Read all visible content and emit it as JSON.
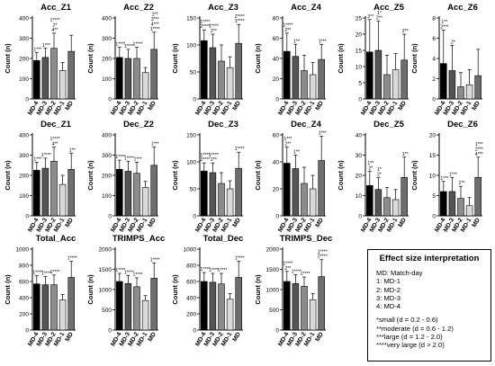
{
  "colors": {
    "MD-4": "#000000",
    "MD-3": "#555555",
    "MD-2": "#8c8c8c",
    "MD-1": "#d9d9d9",
    "MD": "#6e6e6e",
    "axis": "#000000"
  },
  "chart_data": [
    {
      "type": "bar",
      "title": "Acc_Z1",
      "ylabel": "Count (n)",
      "categories": [
        "MD-4",
        "MD-3",
        "MD-2",
        "MD-1",
        "MD"
      ],
      "values": [
        190,
        205,
        250,
        140,
        235
      ],
      "errors": [
        40,
        45,
        75,
        40,
        80
      ],
      "annotations": [
        "1***",
        "1***",
        "1****\n2*\n4**",
        "",
        ""
      ],
      "ylim": [
        0,
        400
      ],
      "yticks": [
        0,
        100,
        200,
        300,
        400
      ]
    },
    {
      "type": "bar",
      "title": "Acc_Z2",
      "ylabel": "Count (n)",
      "categories": [
        "MD-4",
        "MD-3",
        "MD-2",
        "MD-1",
        "MD"
      ],
      "values": [
        205,
        200,
        200,
        130,
        245
      ],
      "errors": [
        50,
        45,
        55,
        25,
        85
      ],
      "annotations": [
        "1****",
        "1****",
        "1****",
        "",
        "2**\n3***\n4***\n1****"
      ],
      "ylim": [
        0,
        400
      ],
      "yticks": [
        0,
        100,
        200,
        300,
        400
      ]
    },
    {
      "type": "bar",
      "title": "Acc_Z3",
      "ylabel": "Count (n)",
      "categories": [
        "MD-4",
        "MD-3",
        "MD-2",
        "MD-1",
        "MD"
      ],
      "values": [
        108,
        95,
        70,
        58,
        103
      ],
      "errors": [
        20,
        25,
        30,
        20,
        35
      ],
      "annotations": [
        "1****\n2****",
        "1****\n2**",
        "",
        "",
        "2****\n1****"
      ],
      "ylim": [
        0,
        150
      ],
      "yticks": [
        0,
        50,
        100,
        150
      ]
    },
    {
      "type": "bar",
      "title": "Acc_Z4",
      "ylabel": "Count (n)",
      "categories": [
        "MD-4",
        "MD-3",
        "MD-2",
        "MD-1",
        "MD"
      ],
      "values": [
        47,
        42,
        28,
        24,
        39
      ],
      "errors": [
        18,
        12,
        15,
        12,
        15
      ],
      "annotations": [
        "1****\n2**",
        "1**",
        "",
        "",
        "1***"
      ],
      "ylim": [
        0,
        80
      ],
      "yticks": [
        0,
        20,
        40,
        60,
        80
      ]
    },
    {
      "type": "bar",
      "title": "Acc_Z5",
      "ylabel": "Count (n)",
      "categories": [
        "MD-4",
        "MD-3",
        "MD-2",
        "MD-1",
        "MD"
      ],
      "values": [
        14.5,
        15,
        7.5,
        9,
        12
      ],
      "errors": [
        10,
        9,
        6,
        5,
        8
      ],
      "annotations": [
        "2**",
        "1*\n2**",
        "",
        "",
        "2**"
      ],
      "ylim": [
        0,
        25
      ],
      "yticks": [
        0,
        5,
        10,
        15,
        20,
        25
      ]
    },
    {
      "type": "bar",
      "title": "Acc_Z6",
      "ylabel": "Count (n)",
      "categories": [
        "MD-4",
        "MD-3",
        "MD-2",
        "MD-1",
        "MD"
      ],
      "values": [
        3.5,
        2.8,
        1.2,
        1.4,
        2.3
      ],
      "errors": [
        3.3,
        2.5,
        1.4,
        1.5,
        2.6
      ],
      "annotations": [
        "1**\n2***",
        "2*",
        "",
        "",
        ""
      ],
      "ylim": [
        0,
        8
      ],
      "yticks": [
        0,
        2,
        4,
        6,
        8
      ]
    },
    {
      "type": "bar",
      "title": "Dec_Z1",
      "ylabel": "Count (n)",
      "categories": [
        "MD-4",
        "MD-3",
        "MD-2",
        "MD-1",
        "MD"
      ],
      "values": [
        225,
        235,
        270,
        155,
        230
      ],
      "errors": [
        40,
        50,
        70,
        45,
        80
      ],
      "annotations": [
        "1***",
        "1****",
        "1****\n4**",
        "",
        "1**"
      ],
      "ylim": [
        0,
        400
      ],
      "yticks": [
        0,
        100,
        200,
        300,
        400
      ]
    },
    {
      "type": "bar",
      "title": "Dec_Z2",
      "ylabel": "Count (n)",
      "categories": [
        "MD-4",
        "MD-3",
        "MD-2",
        "MD-1",
        "MD"
      ],
      "values": [
        230,
        220,
        210,
        140,
        250
      ],
      "errors": [
        45,
        50,
        55,
        30,
        90
      ],
      "annotations": [
        "1****",
        "1****",
        "1***",
        "",
        "1***"
      ],
      "ylim": [
        0,
        400
      ],
      "yticks": [
        0,
        100,
        200,
        300,
        400
      ]
    },
    {
      "type": "bar",
      "title": "Dec_Z3",
      "ylabel": "Count (n)",
      "categories": [
        "MD-4",
        "MD-3",
        "MD-2",
        "MD-1",
        "MD"
      ],
      "values": [
        83,
        80,
        60,
        50,
        88
      ],
      "errors": [
        15,
        18,
        20,
        15,
        30
      ],
      "annotations": [
        "1****\n2****",
        "1****\n2**",
        "",
        "",
        "1****"
      ],
      "ylim": [
        0,
        150
      ],
      "yticks": [
        0,
        50,
        100,
        150
      ]
    },
    {
      "type": "bar",
      "title": "Dec_Z4",
      "ylabel": "Count (n)",
      "categories": [
        "MD-4",
        "MD-3",
        "MD-2",
        "MD-1",
        "MD"
      ],
      "values": [
        39,
        35,
        24,
        20,
        41
      ],
      "errors": [
        12,
        10,
        12,
        10,
        18
      ],
      "annotations": [
        "1***\n2**",
        "1**",
        "",
        "",
        "1***"
      ],
      "ylim": [
        0,
        60
      ],
      "yticks": [
        0,
        20,
        40,
        60
      ]
    },
    {
      "type": "bar",
      "title": "Dec_Z5",
      "ylabel": "Count (n)",
      "categories": [
        "MD-4",
        "MD-3",
        "MD-2",
        "MD-1",
        "MD"
      ],
      "values": [
        15,
        13,
        9,
        8,
        19
      ],
      "errors": [
        7,
        6,
        5,
        5,
        10
      ],
      "annotations": [
        "1**\n2*",
        "1*\n2*",
        "",
        "",
        "1**"
      ],
      "ylim": [
        0,
        40
      ],
      "yticks": [
        0,
        10,
        20,
        30,
        40
      ]
    },
    {
      "type": "bar",
      "title": "Dec_Z6",
      "ylabel": "Count (n)",
      "categories": [
        "MD-4",
        "MD-3",
        "MD-2",
        "MD-1",
        "MD"
      ],
      "values": [
        6,
        6,
        4.3,
        2.5,
        9.5
      ],
      "errors": [
        2.5,
        3.5,
        3,
        2,
        5
      ],
      "annotations": [
        "1***",
        "1***",
        "1**",
        "",
        "1***\n2***\n4***"
      ],
      "ylim": [
        0,
        20
      ],
      "yticks": [
        0,
        5,
        10,
        15,
        20
      ]
    },
    {
      "type": "bar",
      "title": "Total_Acc",
      "ylabel": "Count (n)",
      "categories": [
        "MD-4",
        "MD-3",
        "MD-2",
        "MD-1",
        "MD"
      ],
      "values": [
        570,
        560,
        560,
        370,
        650
      ],
      "errors": [
        100,
        100,
        120,
        70,
        200
      ],
      "annotations": [
        "1****",
        "1****",
        "1****",
        "",
        "1****"
      ],
      "ylim": [
        0,
        1000
      ],
      "yticks": [
        0,
        200,
        400,
        600,
        800,
        1000
      ]
    },
    {
      "type": "bar",
      "title": "TRIMPS_Acc",
      "ylabel": "Count (n)",
      "categories": [
        "MD-4",
        "MD-3",
        "MD-2",
        "MD-1",
        "MD"
      ],
      "values": [
        1200,
        1150,
        1070,
        730,
        1280
      ],
      "errors": [
        200,
        200,
        220,
        120,
        380
      ],
      "annotations": [
        "1****",
        "1****",
        "1****",
        "",
        "1****"
      ],
      "ylim": [
        0,
        2000
      ],
      "yticks": [
        0,
        500,
        1000,
        1500,
        2000
      ]
    },
    {
      "type": "bar",
      "title": "Total_Dec",
      "ylabel": "Count (n)",
      "categories": [
        "MD-4",
        "MD-3",
        "MD-2",
        "MD-1",
        "MD"
      ],
      "values": [
        600,
        590,
        570,
        380,
        650
      ],
      "errors": [
        110,
        110,
        130,
        70,
        200
      ],
      "annotations": [
        "1****",
        "1****",
        "1****",
        "",
        "1****"
      ],
      "ylim": [
        0,
        1000
      ],
      "yticks": [
        0,
        200,
        400,
        600,
        800,
        1000
      ]
    },
    {
      "type": "bar",
      "title": "TRIMPS_Dec",
      "ylabel": "Count (n)",
      "categories": [
        "MD-4",
        "MD-3",
        "MD-2",
        "MD-1",
        "MD"
      ],
      "values": [
        1200,
        1150,
        1080,
        750,
        1320
      ],
      "errors": [
        250,
        220,
        230,
        150,
        420
      ],
      "annotations": [
        "1****\n2**",
        "1****",
        "1****",
        "",
        "1****\n2****"
      ],
      "ylim": [
        0,
        2000
      ],
      "yticks": [
        0,
        500,
        1000,
        1500,
        2000
      ]
    }
  ],
  "legend": {
    "title": "Effect size interpretation",
    "lines": [
      "MD: Match-day",
      "1: MD-1",
      "2: MD-2",
      "3: MD-3",
      "4: MD-4"
    ],
    "effect_lines": [
      "*small (d = 0.2 - 0.6)",
      "**moderate (d = 0.6 - 1.2)",
      "***large (d = 1.2 - 2.0)",
      "****very large (d > 2.0)"
    ]
  }
}
